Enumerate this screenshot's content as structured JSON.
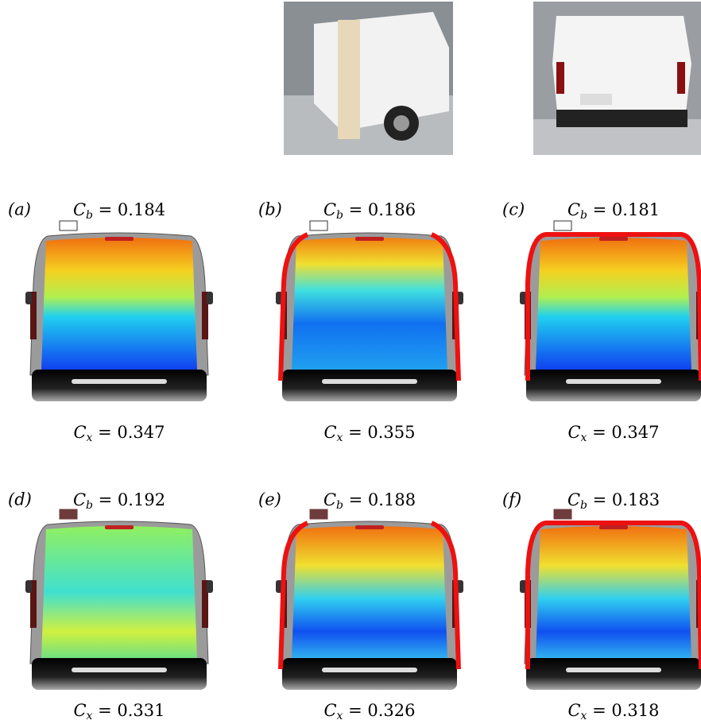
{
  "panels": [
    {
      "label": "(a)",
      "cb": "C_b = 0.184",
      "cx": "C_x = 0.347"
    },
    {
      "label": "(b)",
      "cb": "C_b = 0.186",
      "cx": "C_x = 0.355"
    },
    {
      "label": "(c)",
      "cb": "C_b = 0.181",
      "cx": "C_x = 0.347"
    },
    {
      "label": "(d)",
      "cb": "C_b = 0.192",
      "cx": "C_x = 0.331"
    },
    {
      "label": "(e)",
      "cb": "C_b = 0.188",
      "cx": "C_x = 0.326"
    },
    {
      "label": "(f)",
      "cb": "C_b = 0.183",
      "cx": "C_x = 0.318"
    }
  ]
}
